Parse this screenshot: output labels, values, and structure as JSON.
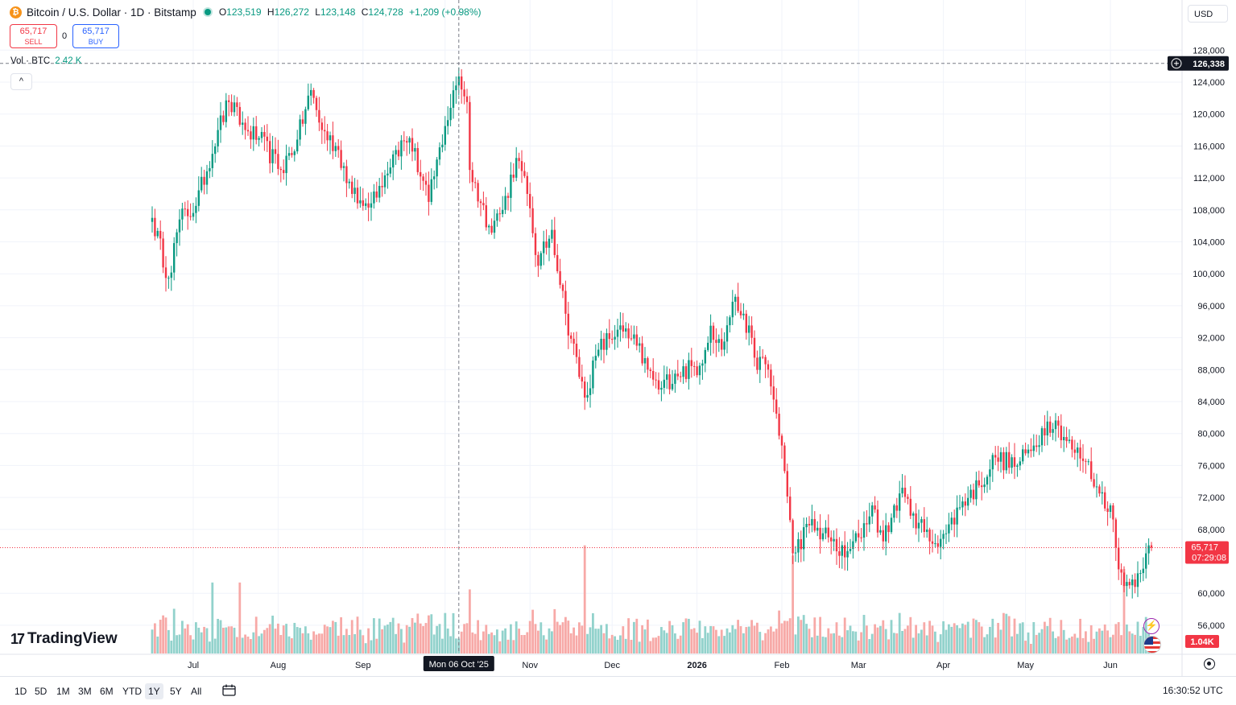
{
  "header": {
    "symbol": "Bitcoin / U.S. Dollar · 1D · Bitstamp",
    "logo_letter": "₿",
    "open_label": "O",
    "open": "123,519",
    "high_label": "H",
    "high": "126,272",
    "low_label": "L",
    "low": "123,148",
    "close_label": "C",
    "close": "124,728",
    "change": "+1,209 (+0.98%)"
  },
  "trade": {
    "sell_price": "65,717",
    "sell_label": "SELL",
    "spread": "0",
    "buy_price": "65,717",
    "buy_label": "BUY"
  },
  "volume_legend": {
    "label": "Vol · BTC",
    "value": "2.42 K"
  },
  "currency": "USD",
  "collapse_icon": "^",
  "crosshair": {
    "date_label": "Mon 06 Oct '25",
    "price_label": "126,338"
  },
  "last_price": {
    "price": "65,717",
    "countdown": "07:29:08"
  },
  "volume_badge": "1.04K",
  "branding": {
    "logo": "TradingView",
    "mark": "17"
  },
  "time_ranges": [
    "1D",
    "5D",
    "1M",
    "3M",
    "6M",
    "YTD",
    "1Y",
    "5Y",
    "All"
  ],
  "time_ranges_active": "1Y",
  "clock": "16:30:52 UTC",
  "icons": {
    "calendar": "calendar-range-icon",
    "settings": "gear-icon",
    "alerts": "flash-icon",
    "flag": "us-flag-icon",
    "add": "plus-circle-icon"
  },
  "colors": {
    "up": "#089981",
    "down": "#f23645",
    "up_volume": "#92d2cc",
    "down_volume": "#f7a9a7"
  },
  "chart_data": {
    "type": "candlestick",
    "title": "Bitcoin / U.S. Dollar · 1D · Bitstamp",
    "y_ticks": [
      128000,
      124000,
      120000,
      116000,
      112000,
      108000,
      104000,
      100000,
      96000,
      92000,
      88000,
      84000,
      80000,
      76000,
      72000,
      68000,
      60000,
      56000
    ],
    "y_tick_labels": [
      "128,000",
      "124,000",
      "120,000",
      "116,000",
      "112,000",
      "108,000",
      "104,000",
      "100,000",
      "96,000",
      "92,000",
      "88,000",
      "84,000",
      "80,000",
      "76,000",
      "72,000",
      "68,000",
      "60,000",
      "56,000"
    ],
    "x_tick_labels": [
      "Jul",
      "Aug",
      "Sep",
      "Nov",
      "Dec",
      "2026",
      "Feb",
      "Mar",
      "Apr",
      "May",
      "Jun"
    ],
    "x_tick_bold": [
      "2026"
    ],
    "ylim": [
      54500,
      130000
    ],
    "grid": true,
    "start_date": "2025-06-16",
    "price_keypoints": [
      [
        "2025-06-16",
        107000
      ],
      [
        "2025-06-22",
        99500
      ],
      [
        "2025-06-26",
        106800
      ],
      [
        "2025-07-02",
        108500
      ],
      [
        "2025-07-10",
        118000
      ],
      [
        "2025-07-14",
        121500
      ],
      [
        "2025-07-20",
        118000
      ],
      [
        "2025-07-25",
        117000
      ],
      [
        "2025-08-02",
        113000
      ],
      [
        "2025-08-08",
        116800
      ],
      [
        "2025-08-13",
        123000
      ],
      [
        "2025-08-17",
        118000
      ],
      [
        "2025-08-23",
        115500
      ],
      [
        "2025-08-28",
        110000
      ],
      [
        "2025-09-01",
        108500
      ],
      [
        "2025-09-07",
        111000
      ],
      [
        "2025-09-13",
        115500
      ],
      [
        "2025-09-18",
        117000
      ],
      [
        "2025-09-25",
        109000
      ],
      [
        "2025-10-01",
        118500
      ],
      [
        "2025-10-06",
        124700
      ],
      [
        "2025-10-09",
        121500
      ],
      [
        "2025-10-10",
        113000
      ],
      [
        "2025-10-17",
        106000
      ],
      [
        "2025-10-22",
        108000
      ],
      [
        "2025-10-27",
        114500
      ],
      [
        "2025-10-31",
        110000
      ],
      [
        "2025-11-04",
        101000
      ],
      [
        "2025-11-09",
        105500
      ],
      [
        "2025-11-14",
        95000
      ],
      [
        "2025-11-21",
        84500
      ],
      [
        "2025-11-26",
        90500
      ],
      [
        "2025-12-03",
        93000
      ],
      [
        "2025-12-10",
        91000
      ],
      [
        "2025-12-14",
        88000
      ],
      [
        "2025-12-18",
        85500
      ],
      [
        "2025-12-24",
        87500
      ],
      [
        "2026-01-02",
        88500
      ],
      [
        "2026-01-06",
        93500
      ],
      [
        "2026-01-10",
        90500
      ],
      [
        "2026-01-14",
        96500
      ],
      [
        "2026-01-18",
        95000
      ],
      [
        "2026-01-22",
        89500
      ],
      [
        "2026-01-27",
        88000
      ],
      [
        "2026-02-01",
        78500
      ],
      [
        "2026-02-05",
        65000
      ],
      [
        "2026-02-11",
        68500
      ],
      [
        "2026-02-18",
        67000
      ],
      [
        "2026-02-24",
        64500
      ],
      [
        "2026-03-01",
        67000
      ],
      [
        "2026-03-06",
        71000
      ],
      [
        "2026-03-10",
        66500
      ],
      [
        "2026-03-16",
        72500
      ],
      [
        "2026-03-21",
        70000
      ],
      [
        "2026-03-27",
        66500
      ],
      [
        "2026-04-02",
        67500
      ],
      [
        "2026-04-08",
        71500
      ],
      [
        "2026-04-14",
        73500
      ],
      [
        "2026-04-20",
        77000
      ],
      [
        "2026-04-28",
        76000
      ],
      [
        "2026-05-04",
        78500
      ],
      [
        "2026-05-09",
        81500
      ],
      [
        "2026-05-13",
        81000
      ],
      [
        "2026-05-18",
        78000
      ],
      [
        "2026-05-23",
        76500
      ],
      [
        "2026-05-28",
        72500
      ],
      [
        "2026-06-01",
        71000
      ],
      [
        "2026-06-04",
        63000
      ],
      [
        "2026-06-08",
        61000
      ],
      [
        "2026-06-11",
        62500
      ],
      [
        "2026-06-14",
        65000
      ],
      [
        "2026-06-16",
        65717
      ]
    ],
    "volume_highlights": [
      [
        "2025-07-08",
        2.1
      ],
      [
        "2025-07-18",
        2.1
      ],
      [
        "2025-11-21",
        3.2
      ],
      [
        "2026-02-05",
        2.9
      ],
      [
        "2026-06-06",
        2.5
      ]
    ]
  }
}
